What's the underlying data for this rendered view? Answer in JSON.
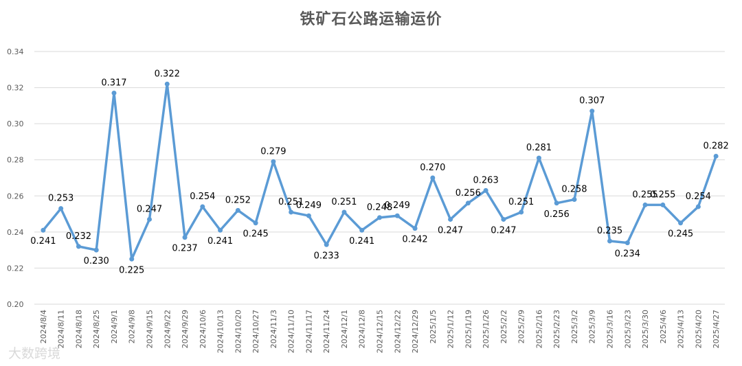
{
  "chart_data": {
    "type": "line",
    "title": "铁矿石公路运输运价",
    "xlabel": "",
    "ylabel": "",
    "ylim": [
      0.2,
      0.34
    ],
    "yticks": [
      "0.20",
      "0.22",
      "0.24",
      "0.26",
      "0.28",
      "0.30",
      "0.32",
      "0.34"
    ],
    "grid": true,
    "legend": "none",
    "colors": {
      "line": "#5b9bd5",
      "grid": "#d9d9d9",
      "text": "#000000",
      "axis_text": "#595959"
    },
    "categories": [
      "2024/8/4",
      "2024/8/11",
      "2024/8/18",
      "2024/8/25",
      "2024/9/1",
      "2024/9/8",
      "2024/9/15",
      "2024/9/22",
      "2024/9/29",
      "2024/10/6",
      "2024/10/13",
      "2024/10/20",
      "2024/10/27",
      "2024/11/3",
      "2024/11/10",
      "2024/11/17",
      "2024/11/24",
      "2024/12/1",
      "2024/12/8",
      "2024/12/15",
      "2024/12/22",
      "2024/12/29",
      "2025/1/5",
      "2025/1/12",
      "2025/1/19",
      "2025/1/26",
      "2025/2/2",
      "2025/2/9",
      "2025/2/16",
      "2025/2/23",
      "2025/3/2",
      "2025/3/9",
      "2025/3/16",
      "2025/3/23",
      "2025/3/30",
      "2025/4/6",
      "2025/4/13",
      "2025/4/20",
      "2025/4/27"
    ],
    "values": [
      0.241,
      0.253,
      0.232,
      0.23,
      0.317,
      0.225,
      0.247,
      0.322,
      0.237,
      0.254,
      0.241,
      0.252,
      0.245,
      0.279,
      0.251,
      0.249,
      0.233,
      0.251,
      0.241,
      0.248,
      0.249,
      0.242,
      0.27,
      0.247,
      0.256,
      0.263,
      0.247,
      0.251,
      0.281,
      0.256,
      0.258,
      0.307,
      0.235,
      0.234,
      0.255,
      0.255,
      0.245,
      0.254,
      0.282
    ],
    "labels": [
      "0.241",
      "0.253",
      "0.232",
      "0.230",
      "0.317",
      "0.225",
      "0.247",
      "0.322",
      "0.237",
      "0.254",
      "0.241",
      "0.252",
      "0.245",
      "0.279",
      "0.251",
      "0.249",
      "0.233",
      "0.251",
      "0.241",
      "0.248",
      "0.249",
      "0.242",
      "0.270",
      "0.247",
      "0.256",
      "0.263",
      "0.247",
      "0.251",
      "0.281",
      "0.256",
      "0.258",
      "0.307",
      "0.235",
      "0.234",
      "0.255",
      "0.255",
      "0.245",
      "0.254",
      "0.282"
    ]
  },
  "watermark": "大数跨境"
}
